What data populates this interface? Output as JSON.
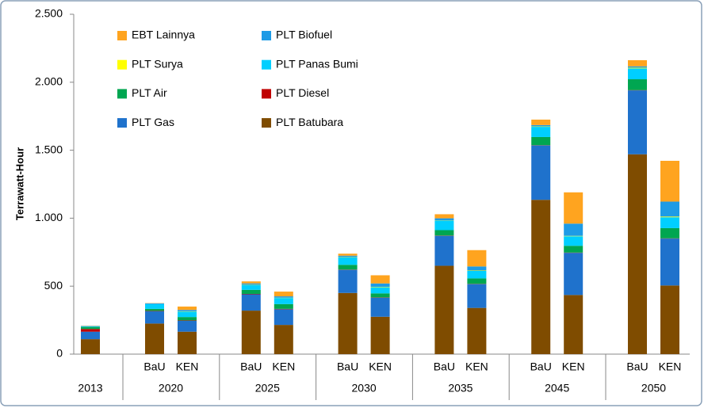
{
  "chart_data": {
    "type": "stacked_bar",
    "y_label": "Terrawatt-Hour",
    "categories": [
      null,
      "BaU",
      "KEN",
      "BaU",
      "KEN",
      "BaU",
      "KEN",
      "BaU",
      "KEN",
      "BaU",
      "KEN",
      "BaU",
      "KEN"
    ],
    "group_labels": [
      "2013",
      "2020",
      "2025",
      "2030",
      "2035",
      "2045",
      "2050"
    ],
    "group_sizes": [
      1,
      2,
      2,
      2,
      2,
      2,
      2
    ],
    "series": [
      {
        "name": "EBT Lainnya",
        "color": "#ffa41f",
        "values": [
          2,
          2,
          25,
          15,
          35,
          15,
          60,
          30,
          120,
          40,
          230,
          45,
          300
        ]
      },
      {
        "name": "PLT Biofuel",
        "color": "#1e9be6",
        "values": [
          2,
          5,
          10,
          10,
          10,
          10,
          25,
          15,
          30,
          10,
          90,
          10,
          110
        ]
      },
      {
        "name": "PLT Surya",
        "color": "#ffff00",
        "values": [
          0,
          0,
          2,
          2,
          2,
          2,
          3,
          2,
          3,
          3,
          3,
          5,
          5
        ]
      },
      {
        "name": "PLT Panas Bumi",
        "color": "#00cfff",
        "values": [
          5,
          35,
          40,
          35,
          45,
          55,
          45,
          70,
          55,
          75,
          70,
          80,
          80
        ]
      },
      {
        "name": "PLT Air",
        "color": "#00a651",
        "values": [
          15,
          15,
          25,
          30,
          35,
          35,
          30,
          40,
          40,
          60,
          50,
          80,
          75
        ]
      },
      {
        "name": "PLT Diesel",
        "color": "#c00000",
        "values": [
          20,
          3,
          3,
          3,
          3,
          2,
          2,
          2,
          2,
          2,
          2,
          2,
          2
        ]
      },
      {
        "name": "PLT Gas",
        "color": "#1f72cc",
        "values": [
          55,
          90,
          80,
          120,
          115,
          170,
          140,
          220,
          175,
          400,
          310,
          470,
          345
        ]
      },
      {
        "name": "PLT Batubara",
        "color": "#7f4c00",
        "values": [
          110,
          225,
          165,
          320,
          215,
          450,
          275,
          650,
          340,
          1135,
          435,
          1470,
          505
        ]
      }
    ],
    "ylim": [
      0,
      2500
    ],
    "yticks": [
      0,
      500,
      {
        "value": 1000,
        "label": "1.000"
      },
      {
        "value": 1500,
        "label": "1.500"
      },
      {
        "value": 2000,
        "label": "2.000"
      },
      {
        "value": 2500,
        "label": "2.500"
      }
    ],
    "legend": "top-left"
  }
}
